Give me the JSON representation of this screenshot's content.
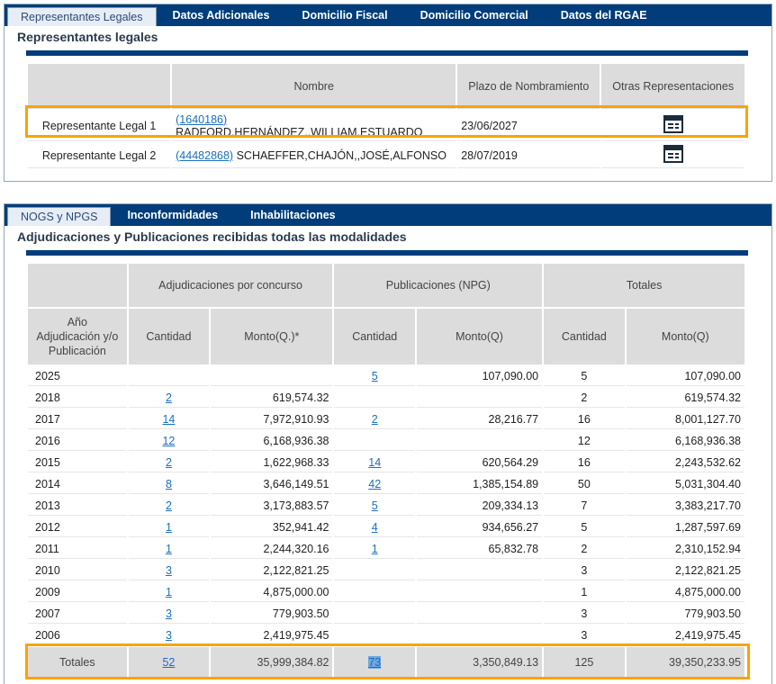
{
  "top_tabs": [
    "Representantes Legales",
    "Datos Adicionales",
    "Domicilio Fiscal",
    "Domicilio Comercial",
    "Datos del RGAE"
  ],
  "reps": {
    "title": "Representantes legales",
    "headers": {
      "nombre": "Nombre",
      "plazo": "Plazo de Nombramiento",
      "otras": "Otras Representaciones"
    },
    "rows": [
      {
        "label": "Representante Legal 1",
        "code": "(1640186)",
        "name": "RADFORD,HERNÁNDEZ,,WILLIAM,ESTUARDO",
        "plazo": "23/06/2027",
        "icon": "calendar-table-icon"
      },
      {
        "label": "Representante Legal 2",
        "code": "(44482868)",
        "name": "SCHAEFFER,CHAJÓN,,JOSÉ,ALFONSO",
        "plazo": "28/07/2019",
        "icon": "calendar-table-icon"
      }
    ]
  },
  "bottom_tabs": [
    "NOGS y NPGS",
    "Inconformidades",
    "Inhabilitaciones"
  ],
  "adj": {
    "title": "Adjudicaciones y Publicaciones recibidas todas las modalidades",
    "group_headers": {
      "adjudicaciones": "Adjudicaciones por concurso",
      "publicaciones": "Publicaciones (NPG)",
      "totales": "Totales"
    },
    "sub_headers": {
      "anio": "Año Adjudicación y/o Publicación",
      "cantidad": "Cantidad",
      "monto_adj": "Monto(Q.)*",
      "monto": "Monto(Q)"
    },
    "rows": [
      {
        "year": "2025",
        "adj_cant": "",
        "adj_monto": "",
        "pub_cant": "5",
        "pub_monto": "107,090.00",
        "tot_cant": "5",
        "tot_monto": "107,090.00"
      },
      {
        "year": "2018",
        "adj_cant": "2",
        "adj_monto": "619,574.32",
        "pub_cant": "",
        "pub_monto": "",
        "tot_cant": "2",
        "tot_monto": "619,574.32"
      },
      {
        "year": "2017",
        "adj_cant": "14",
        "adj_monto": "7,972,910.93",
        "pub_cant": "2",
        "pub_monto": "28,216.77",
        "tot_cant": "16",
        "tot_monto": "8,001,127.70"
      },
      {
        "year": "2016",
        "adj_cant": "12",
        "adj_monto": "6,168,936.38",
        "pub_cant": "",
        "pub_monto": "",
        "tot_cant": "12",
        "tot_monto": "6,168,936.38"
      },
      {
        "year": "2015",
        "adj_cant": "2",
        "adj_monto": "1,622,968.33",
        "pub_cant": "14",
        "pub_monto": "620,564.29",
        "tot_cant": "16",
        "tot_monto": "2,243,532.62"
      },
      {
        "year": "2014",
        "adj_cant": "8",
        "adj_monto": "3,646,149.51",
        "pub_cant": "42",
        "pub_monto": "1,385,154.89",
        "tot_cant": "50",
        "tot_monto": "5,031,304.40"
      },
      {
        "year": "2013",
        "adj_cant": "2",
        "adj_monto": "3,173,883.57",
        "pub_cant": "5",
        "pub_monto": "209,334.13",
        "tot_cant": "7",
        "tot_monto": "3,383,217.70"
      },
      {
        "year": "2012",
        "adj_cant": "1",
        "adj_monto": "352,941.42",
        "pub_cant": "4",
        "pub_monto": "934,656.27",
        "tot_cant": "5",
        "tot_monto": "1,287,597.69"
      },
      {
        "year": "2011",
        "adj_cant": "1",
        "adj_monto": "2,244,320.16",
        "pub_cant": "1",
        "pub_monto": "65,832.78",
        "tot_cant": "2",
        "tot_monto": "2,310,152.94"
      },
      {
        "year": "2010",
        "adj_cant": "3",
        "adj_monto": "2,122,821.25",
        "pub_cant": "",
        "pub_monto": "",
        "tot_cant": "3",
        "tot_monto": "2,122,821.25"
      },
      {
        "year": "2009",
        "adj_cant": "1",
        "adj_monto": "4,875,000.00",
        "pub_cant": "",
        "pub_monto": "",
        "tot_cant": "1",
        "tot_monto": "4,875,000.00"
      },
      {
        "year": "2007",
        "adj_cant": "3",
        "adj_monto": "779,903.50",
        "pub_cant": "",
        "pub_monto": "",
        "tot_cant": "3",
        "tot_monto": "779,903.50"
      },
      {
        "year": "2006",
        "adj_cant": "3",
        "adj_monto": "2,419,975.45",
        "pub_cant": "",
        "pub_monto": "",
        "tot_cant": "3",
        "tot_monto": "2,419,975.45"
      }
    ],
    "totals": {
      "label": "Totales",
      "adj_cant": "52",
      "adj_monto": "35,999,384.82",
      "pub_cant": "73",
      "pub_monto": "3,350,849.13",
      "tot_cant": "125",
      "tot_monto": "39,350,233.95"
    }
  }
}
